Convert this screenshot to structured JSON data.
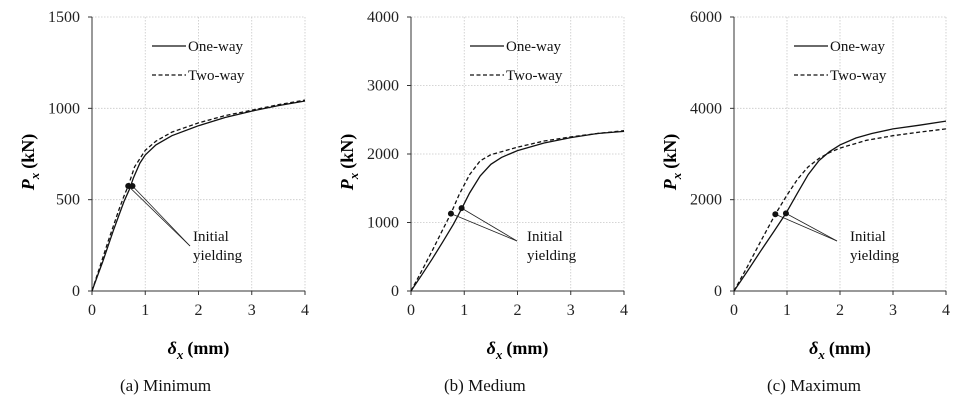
{
  "chart_data": [
    {
      "type": "line",
      "caption": "(a) Minimum",
      "ylabel_main": "P",
      "ylabel_sub": "x",
      "ylabel_unit": "(kN)",
      "xlabel_main": "δ",
      "xlabel_sub": "x",
      "xlabel_unit": "(mm)",
      "xlim": [
        0,
        4
      ],
      "ylim": [
        0,
        1500
      ],
      "xticks": [
        "0",
        "1",
        "2",
        "3",
        "4"
      ],
      "yticks": [
        "0",
        "500",
        "1000",
        "1500"
      ],
      "grid": true,
      "legend_position": "top-right",
      "series": [
        {
          "name": "One-way",
          "style": "solid",
          "x": [
            0,
            0.1,
            0.2,
            0.3,
            0.4,
            0.5,
            0.6,
            0.7,
            0.78,
            0.9,
            1.0,
            1.2,
            1.5,
            2.0,
            2.5,
            3.0,
            3.5,
            4.0
          ],
          "y": [
            0,
            80,
            160,
            245,
            330,
            410,
            490,
            555,
            620,
            700,
            745,
            800,
            850,
            905,
            950,
            985,
            1015,
            1040
          ]
        },
        {
          "name": "Two-way",
          "style": "dashed",
          "x": [
            0,
            0.1,
            0.2,
            0.3,
            0.4,
            0.5,
            0.6,
            0.68,
            0.8,
            1.0,
            1.2,
            1.5,
            2.0,
            2.5,
            3.0,
            3.5,
            4.0
          ],
          "y": [
            0,
            90,
            180,
            270,
            355,
            440,
            520,
            575,
            680,
            770,
            820,
            870,
            920,
            960,
            990,
            1020,
            1045
          ]
        }
      ],
      "markers": [
        {
          "x": 0.68,
          "y": 575
        },
        {
          "x": 0.76,
          "y": 575
        }
      ],
      "annotation": [
        "Initial",
        "yielding"
      ]
    },
    {
      "type": "line",
      "caption": "(b) Medium",
      "ylabel_main": "P",
      "ylabel_sub": "x",
      "ylabel_unit": "(kN)",
      "xlabel_main": "δ",
      "xlabel_sub": "x",
      "xlabel_unit": "(mm)",
      "xlim": [
        0,
        4
      ],
      "ylim": [
        0,
        4000
      ],
      "xticks": [
        "0",
        "1",
        "2",
        "3",
        "4"
      ],
      "yticks": [
        "0",
        "1000",
        "2000",
        "3000",
        "4000"
      ],
      "grid": true,
      "legend_position": "top-right",
      "series": [
        {
          "name": "One-way",
          "style": "solid",
          "x": [
            0,
            0.2,
            0.4,
            0.6,
            0.8,
            0.95,
            1.1,
            1.3,
            1.5,
            1.7,
            2.0,
            2.5,
            3.0,
            3.5,
            4.0
          ],
          "y": [
            0,
            230,
            470,
            720,
            980,
            1200,
            1430,
            1680,
            1850,
            1950,
            2050,
            2160,
            2240,
            2300,
            2330
          ]
        },
        {
          "name": "Two-way",
          "style": "dashed",
          "x": [
            0,
            0.2,
            0.4,
            0.6,
            0.75,
            0.9,
            1.1,
            1.3,
            1.5,
            2.0,
            2.5,
            3.0,
            3.5,
            4.0
          ],
          "y": [
            0,
            290,
            590,
            900,
            1130,
            1400,
            1700,
            1900,
            1990,
            2100,
            2190,
            2250,
            2300,
            2340
          ]
        }
      ],
      "markers": [
        {
          "x": 0.75,
          "y": 1130
        },
        {
          "x": 0.95,
          "y": 1210
        }
      ],
      "annotation": [
        "Initial",
        "yielding"
      ]
    },
    {
      "type": "line",
      "caption": "(c) Maximum",
      "ylabel_main": "P",
      "ylabel_sub": "x",
      "ylabel_unit": "(kN)",
      "xlabel_main": "δ",
      "xlabel_sub": "x",
      "xlabel_unit": "(mm)",
      "xlim": [
        0,
        4
      ],
      "ylim": [
        0,
        6000
      ],
      "xticks": [
        "0",
        "1",
        "2",
        "3",
        "4"
      ],
      "yticks": [
        "0",
        "2000",
        "4000",
        "6000"
      ],
      "grid": true,
      "legend_position": "top-right",
      "series": [
        {
          "name": "One-way",
          "style": "solid",
          "x": [
            0,
            0.25,
            0.5,
            0.75,
            0.98,
            1.2,
            1.4,
            1.6,
            1.8,
            2.0,
            2.3,
            2.6,
            3.0,
            3.5,
            4.0
          ],
          "y": [
            0,
            430,
            870,
            1300,
            1700,
            2150,
            2550,
            2850,
            3050,
            3200,
            3350,
            3450,
            3550,
            3630,
            3720
          ]
        },
        {
          "name": "Two-way",
          "style": "dashed",
          "x": [
            0,
            0.25,
            0.5,
            0.78,
            1.0,
            1.2,
            1.4,
            1.6,
            1.8,
            2.0,
            2.5,
            3.0,
            3.5,
            4.0
          ],
          "y": [
            0,
            530,
            1080,
            1680,
            2100,
            2450,
            2720,
            2900,
            3030,
            3130,
            3300,
            3400,
            3480,
            3550
          ]
        }
      ],
      "markers": [
        {
          "x": 0.78,
          "y": 1680
        },
        {
          "x": 0.98,
          "y": 1700
        }
      ],
      "annotation": [
        "Initial",
        "yielding"
      ]
    }
  ]
}
